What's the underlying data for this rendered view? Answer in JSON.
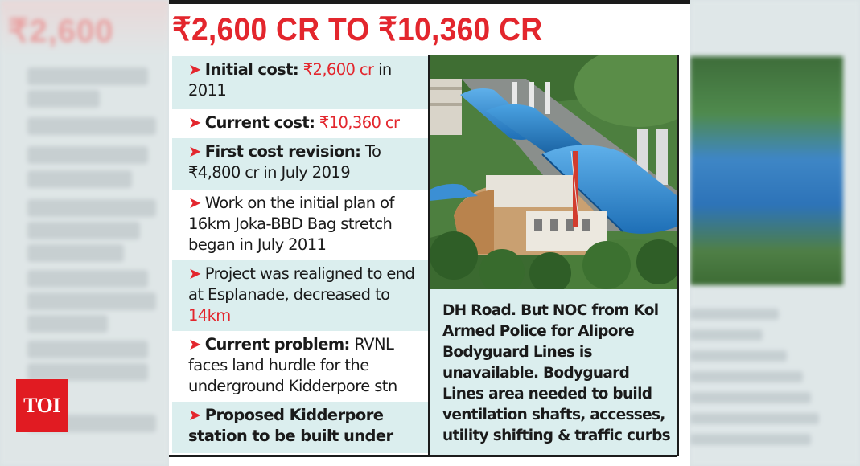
{
  "headline": "₹2,600 CR TO ₹10,360 CR",
  "logo": "TOI",
  "items": [
    {
      "label": "Initial cost:",
      "highlight": "₹2,600 cr",
      "text": " in 2011"
    },
    {
      "label": "Current cost:",
      "highlight": "₹10,360 cr",
      "text": ""
    },
    {
      "label": "First cost revision:",
      "highlight": "",
      "text": " To ₹4,800 cr in July 2019"
    },
    {
      "label": "",
      "highlight": "",
      "text": "Work on the initial plan of 16km Joka-BBD Bag stretch began in July 2011"
    },
    {
      "label": "",
      "highlight": "",
      "text": "Project was realigned to end at Esplanade, decreased to "
    },
    {
      "label": "Current problem:",
      "highlight": "",
      "text": " RVNL faces land hurdle for the underground Kidderpore stn"
    },
    {
      "label": "Proposed Kidderpore station to be built under",
      "highlight": "",
      "text": ""
    }
  ],
  "item5_highlight": "14km",
  "note_text": "DH Road. But NOC from Kol Armed Police for Alipore Bodyguard Lines is unavailable. Bodyguard Lines area needed to build ventilation shafts, accesses, utility shifting & traffic curbs",
  "colors": {
    "accent": "#e3262d",
    "tint": "#dbeeee",
    "logo_bg": "#e11b22"
  }
}
